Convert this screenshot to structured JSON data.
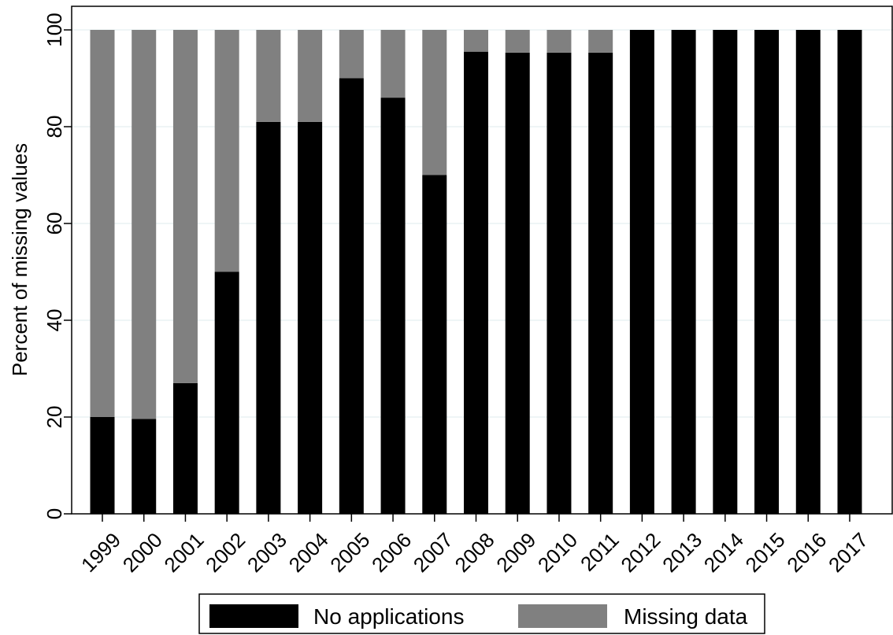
{
  "chart_data": {
    "type": "bar",
    "stacked": true,
    "categories": [
      "1999",
      "2000",
      "2001",
      "2002",
      "2003",
      "2004",
      "2005",
      "2006",
      "2007",
      "2008",
      "2009",
      "2010",
      "2011",
      "2012",
      "2013",
      "2014",
      "2015",
      "2016",
      "2017"
    ],
    "series": [
      {
        "name": "No applications",
        "color": "#000000",
        "values": [
          20,
          19.6,
          27,
          50,
          81,
          81,
          90,
          86,
          70,
          95.5,
          95.3,
          95.3,
          95.3,
          100,
          100,
          100,
          100,
          100,
          100
        ]
      },
      {
        "name": "Missing data",
        "color": "#808080",
        "values": [
          80,
          80.4,
          73,
          50,
          19,
          19,
          10,
          14,
          30,
          4.5,
          4.7,
          4.7,
          4.7,
          0,
          0,
          0,
          0,
          0,
          0
        ]
      }
    ],
    "title": "",
    "xlabel": "",
    "ylabel": "Percent of missing values",
    "ylim": [
      0,
      100
    ],
    "yticks": [
      "0",
      "20",
      "40",
      "60",
      "80",
      "100"
    ],
    "grid": true,
    "legend_position": "bottom"
  }
}
